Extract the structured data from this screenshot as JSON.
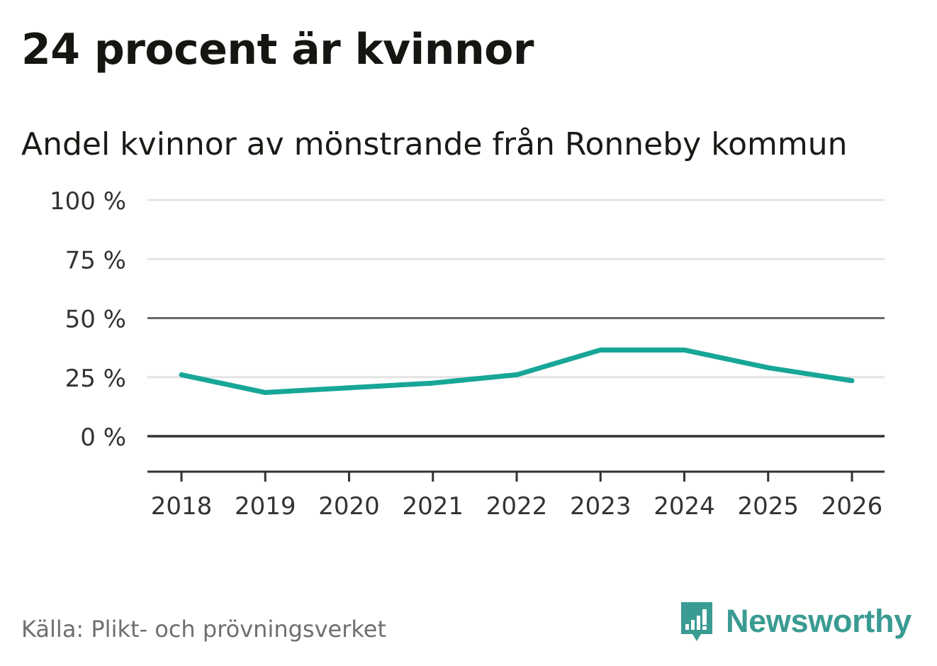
{
  "title": "24 procent är kvinnor",
  "subtitle": "Andel kvinnor av mönstrande från Ronneby kommun",
  "source": "Källa: Plikt- och prövningsverket",
  "brand": {
    "name": "Newsworthy",
    "icon": "newsworthy-logo-icon"
  },
  "colors": {
    "line": "#17a697",
    "grid": "#e3e3e3",
    "reference": "#696970",
    "axis": "#333333",
    "brand": "#3a9b92"
  },
  "chart_data": {
    "type": "line",
    "title": "Andel kvinnor av mönstrande från Ronneby kommun",
    "xlabel": "",
    "ylabel": "",
    "ylim": [
      -15,
      100
    ],
    "yticks": [
      0,
      25,
      50,
      75,
      100
    ],
    "ytick_labels": [
      "0 %",
      "25 %",
      "50 %",
      "75 %",
      "100 %"
    ],
    "categories": [
      "2018",
      "2019",
      "2020",
      "2021",
      "2022",
      "2023",
      "2024",
      "2025",
      "2026"
    ],
    "series": [
      {
        "name": "Andel kvinnor",
        "values": [
          26,
          18.5,
          20.5,
          22.5,
          26,
          36.5,
          36.5,
          29,
          23.5
        ]
      }
    ],
    "grid": true,
    "legend": "none"
  }
}
